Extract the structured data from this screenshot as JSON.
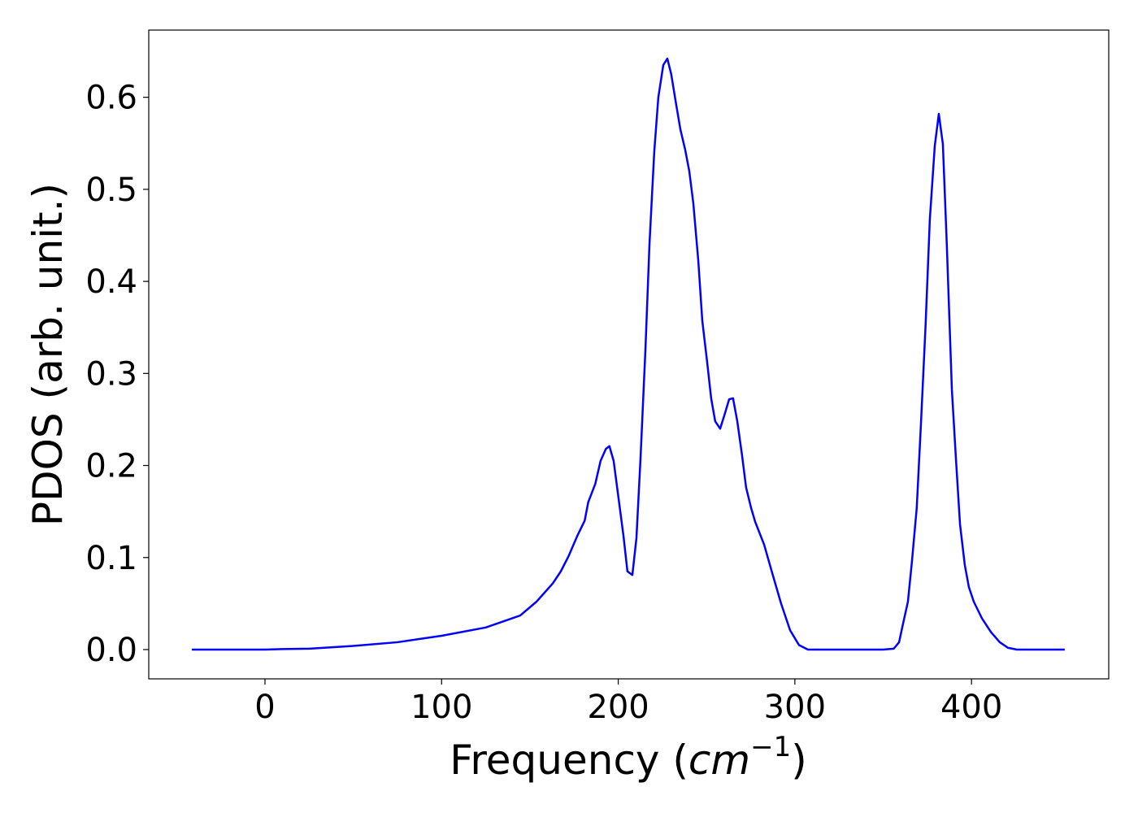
{
  "chart_data": {
    "type": "line",
    "xlabel": {
      "text": "Frequency (",
      "math": "cm",
      "superscript": "−1",
      "close": ")"
    },
    "ylabel": "PDOS (arb. unit.)",
    "x": [
      -41.4,
      -20,
      0,
      10,
      25,
      50,
      75,
      100,
      125,
      144.5,
      153.7,
      163,
      167.5,
      172,
      176.7,
      181,
      183,
      187,
      190,
      193,
      195,
      197.4,
      200,
      203,
      205.2,
      208,
      210.3,
      212.6,
      215.4,
      217.7,
      220.4,
      222.7,
      225.5,
      227.8,
      230,
      232.9,
      235.2,
      237.9,
      240.2,
      242.5,
      245.3,
      247.6,
      250.3,
      252.6,
      254.9,
      257.7,
      260,
      262.8,
      265,
      267.4,
      270.1,
      272.4,
      275.2,
      277.5,
      282.6,
      287.2,
      292.2,
      297.3,
      302.3,
      307.4,
      320,
      340,
      350,
      356,
      359,
      361,
      364,
      366.3,
      369,
      371.4,
      374,
      376.4,
      379.2,
      381.5,
      383.8,
      386,
      388.9,
      391.2,
      393.5,
      396.2,
      398.5,
      401.3,
      405.9,
      411,
      416,
      420.6,
      425.7,
      440,
      452.8
    ],
    "series": [
      {
        "color": "#0000ff",
        "values": [
          0,
          0,
          0,
          0.0005,
          0.001,
          0.004,
          0.008,
          0.015,
          0.024,
          0.037,
          0.052,
          0.072,
          0.085,
          0.102,
          0.123,
          0.14,
          0.16,
          0.18,
          0.205,
          0.218,
          0.221,
          0.205,
          0.167,
          0.123,
          0.085,
          0.081,
          0.121,
          0.207,
          0.326,
          0.441,
          0.541,
          0.6,
          0.635,
          0.642,
          0.625,
          0.591,
          0.565,
          0.543,
          0.52,
          0.485,
          0.423,
          0.357,
          0.313,
          0.273,
          0.248,
          0.24,
          0.254,
          0.272,
          0.273,
          0.248,
          0.211,
          0.176,
          0.154,
          0.139,
          0.114,
          0.083,
          0.05,
          0.021,
          0.005,
          0,
          0,
          0,
          0,
          0.001,
          0.008,
          0.026,
          0.052,
          0.096,
          0.154,
          0.246,
          0.352,
          0.467,
          0.547,
          0.582,
          0.549,
          0.441,
          0.282,
          0.207,
          0.136,
          0.092,
          0.068,
          0.052,
          0.034,
          0.019,
          0.008,
          0.002,
          0,
          0,
          0
        ]
      }
    ],
    "xlim": [
      -65.8,
      477.7
    ],
    "ylim": [
      -0.0318,
      0.673
    ],
    "xticks": [
      0,
      100,
      200,
      300,
      400
    ],
    "yticks": [
      {
        "value": 0,
        "label": "0.0"
      },
      0.1,
      0.2,
      0.3,
      0.4,
      0.5,
      0.6
    ]
  }
}
